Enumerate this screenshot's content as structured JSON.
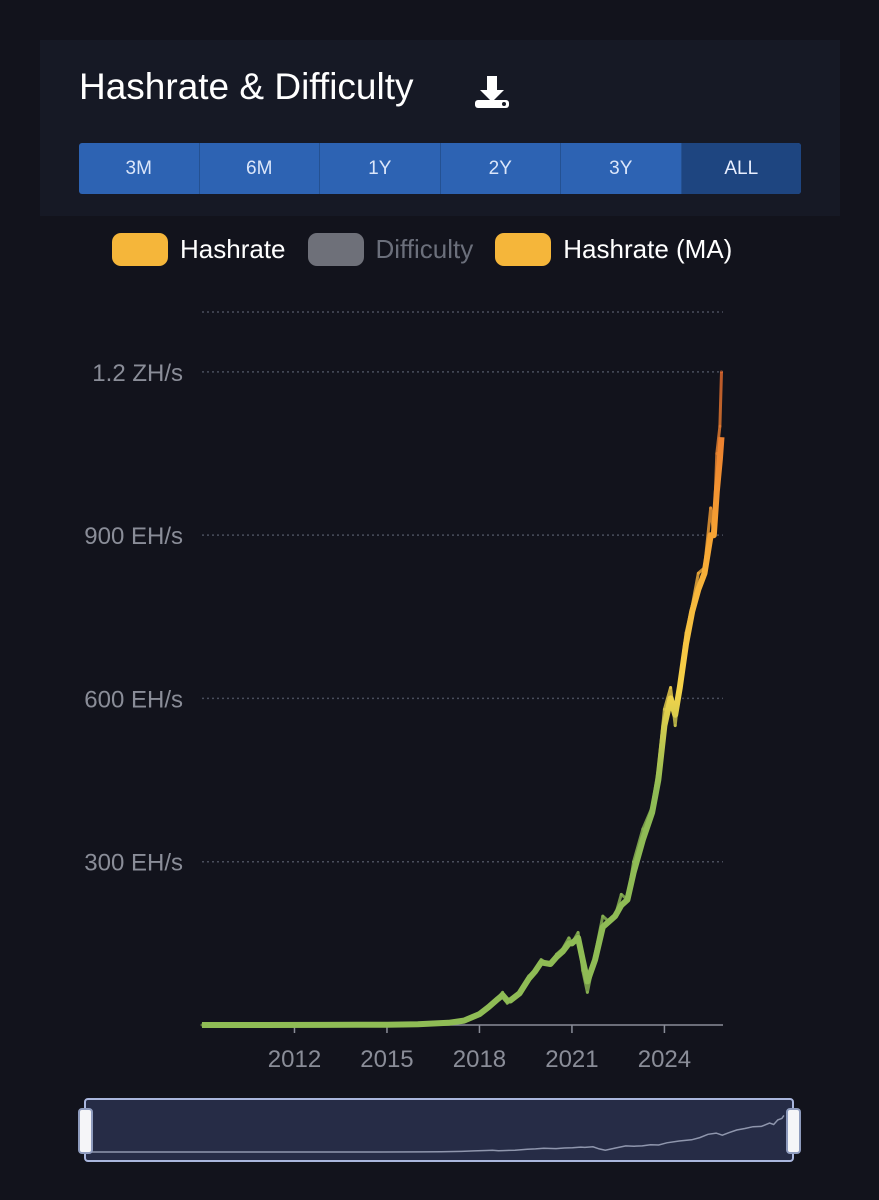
{
  "header": {
    "title": "Hashrate & Difficulty",
    "download_icon": "download-icon"
  },
  "range_selector": {
    "options": [
      "3M",
      "6M",
      "1Y",
      "2Y",
      "3Y",
      "ALL"
    ],
    "selected": "ALL"
  },
  "legend": {
    "items": [
      {
        "label": "Hashrate",
        "color": "#f5b63a",
        "enabled": true
      },
      {
        "label": "Difficulty",
        "color": "#6e7079",
        "enabled": false
      },
      {
        "label": "Hashrate (MA)",
        "color": "#f5b63a",
        "enabled": true
      }
    ]
  },
  "colors": {
    "background": "#12131c",
    "card": "#161925",
    "range_active": "#1e4580",
    "range_default": "#2d63b3",
    "gradient": [
      "#8fbc55",
      "#f6d44a",
      "#f7a534",
      "#e0542a"
    ]
  },
  "chart_data": {
    "type": "line",
    "title": "Hashrate & Difficulty",
    "x_unit": "year",
    "xlim": [
      2009.0,
      2025.9
    ],
    "ylim": [
      0,
      1.31
    ],
    "y_unit": "ZH/s",
    "y_ticks": [
      "300 EH/s",
      "600 EH/s",
      "900 EH/s",
      "1.2 ZH/s"
    ],
    "y_tick_values": [
      0.3,
      0.6,
      0.9,
      1.2
    ],
    "x_ticks": [
      "2012",
      "2015",
      "2018",
      "2021",
      "2024"
    ],
    "x_tick_values": [
      2012,
      2015,
      2018,
      2021,
      2024
    ],
    "grid": true,
    "series": [
      {
        "name": "Hashrate",
        "x": [
          2009.0,
          2011.0,
          2013.0,
          2014.0,
          2015.0,
          2016.0,
          2017.0,
          2017.5,
          2018.0,
          2018.3,
          2018.6,
          2018.75,
          2018.9,
          2019.0,
          2019.3,
          2019.6,
          2019.8,
          2020.0,
          2020.3,
          2020.5,
          2020.7,
          2020.9,
          2021.0,
          2021.2,
          2021.35,
          2021.5,
          2021.75,
          2022.0,
          2022.2,
          2022.4,
          2022.6,
          2022.8,
          2023.0,
          2023.3,
          2023.6,
          2023.8,
          2024.0,
          2024.2,
          2024.35,
          2024.5,
          2024.7,
          2024.9,
          2025.1,
          2025.3,
          2025.5,
          2025.6,
          2025.7,
          2025.8,
          2025.85
        ],
        "y": [
          0.0,
          0.0,
          0.0002,
          0.0003,
          0.0005,
          0.0015,
          0.004,
          0.008,
          0.02,
          0.035,
          0.05,
          0.06,
          0.04,
          0.045,
          0.06,
          0.09,
          0.1,
          0.12,
          0.11,
          0.13,
          0.14,
          0.16,
          0.15,
          0.17,
          0.1,
          0.06,
          0.13,
          0.2,
          0.19,
          0.2,
          0.24,
          0.23,
          0.3,
          0.36,
          0.4,
          0.47,
          0.58,
          0.62,
          0.55,
          0.63,
          0.72,
          0.77,
          0.83,
          0.84,
          0.95,
          0.9,
          1.05,
          1.1,
          1.2
        ]
      },
      {
        "name": "Hashrate (MA)",
        "x": [
          2009.0,
          2011.0,
          2013.0,
          2014.0,
          2015.0,
          2016.0,
          2017.0,
          2017.5,
          2018.0,
          2018.3,
          2018.6,
          2018.75,
          2018.9,
          2019.0,
          2019.3,
          2019.6,
          2019.8,
          2020.0,
          2020.3,
          2020.5,
          2020.7,
          2020.9,
          2021.0,
          2021.2,
          2021.35,
          2021.5,
          2021.75,
          2022.0,
          2022.2,
          2022.4,
          2022.6,
          2022.8,
          2023.0,
          2023.3,
          2023.6,
          2023.8,
          2024.0,
          2024.2,
          2024.35,
          2024.5,
          2024.7,
          2024.9,
          2025.1,
          2025.3,
          2025.5,
          2025.6,
          2025.7,
          2025.8,
          2025.85
        ],
        "y": [
          0.0,
          0.0,
          0.0002,
          0.0003,
          0.0005,
          0.0015,
          0.004,
          0.008,
          0.02,
          0.033,
          0.048,
          0.055,
          0.045,
          0.045,
          0.058,
          0.085,
          0.098,
          0.115,
          0.112,
          0.125,
          0.135,
          0.15,
          0.15,
          0.16,
          0.12,
          0.08,
          0.12,
          0.18,
          0.19,
          0.2,
          0.22,
          0.23,
          0.28,
          0.34,
          0.39,
          0.45,
          0.55,
          0.6,
          0.57,
          0.62,
          0.7,
          0.76,
          0.8,
          0.83,
          0.9,
          0.9,
          0.98,
          1.04,
          1.08
        ]
      }
    ]
  }
}
